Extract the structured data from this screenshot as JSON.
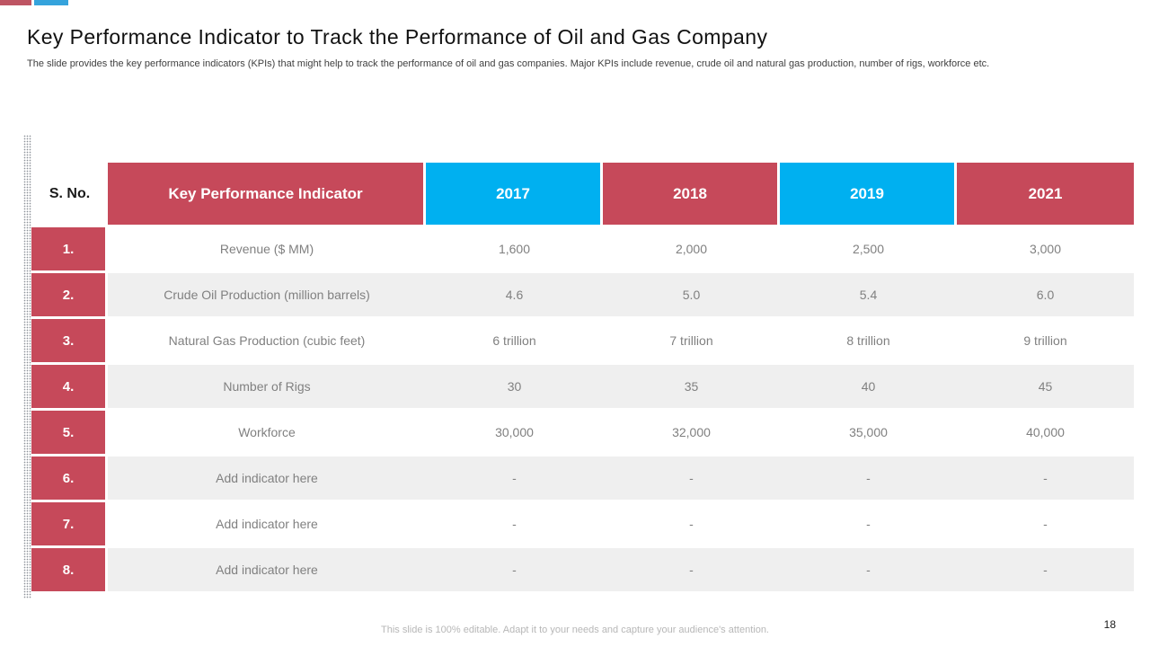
{
  "slide": {
    "title": "Key Performance Indicator to Track the Performance of Oil and Gas Company",
    "subtitle": "The slide provides the key performance indicators (KPIs) that might help to track the performance of oil and gas companies. Major KPIs include revenue, crude oil and natural gas production, number of rigs, workforce etc.",
    "footer": "This slide is 100% editable. Adapt it to your needs and capture your audience's attention.",
    "page_number": "18"
  },
  "colors": {
    "table_red": "#C6495A",
    "table_cyan": "#00B0F0",
    "accent_red": "#BE5563",
    "accent_blue": "#35A3DC",
    "row_alt": "#EFEFEF",
    "text_gray": "#808080"
  },
  "table": {
    "headers": [
      "S. No.",
      "Key Performance Indicator",
      "2017",
      "2018",
      "2019",
      "2021"
    ],
    "rows": [
      {
        "no": "1.",
        "kpi": "Revenue ($ MM)",
        "values": [
          "1,600",
          "2,000",
          "2,500",
          "3,000"
        ]
      },
      {
        "no": "2.",
        "kpi": "Crude Oil Production (million barrels)",
        "values": [
          "4.6",
          "5.0",
          "5.4",
          "6.0"
        ]
      },
      {
        "no": "3.",
        "kpi": "Natural Gas Production (cubic feet)",
        "values": [
          "6 trillion",
          "7 trillion",
          "8 trillion",
          "9 trillion"
        ]
      },
      {
        "no": "4.",
        "kpi": "Number of Rigs",
        "values": [
          "30",
          "35",
          "40",
          "45"
        ]
      },
      {
        "no": "5.",
        "kpi": "Workforce",
        "values": [
          "30,000",
          "32,000",
          "35,000",
          "40,000"
        ]
      },
      {
        "no": "6.",
        "kpi": "Add indicator here",
        "values": [
          "-",
          "-",
          "-",
          "-"
        ]
      },
      {
        "no": "7.",
        "kpi": "Add indicator here",
        "values": [
          "-",
          "-",
          "-",
          "-"
        ]
      },
      {
        "no": "8.",
        "kpi": "Add indicator here",
        "values": [
          "-",
          "-",
          "-",
          "-"
        ]
      }
    ]
  }
}
